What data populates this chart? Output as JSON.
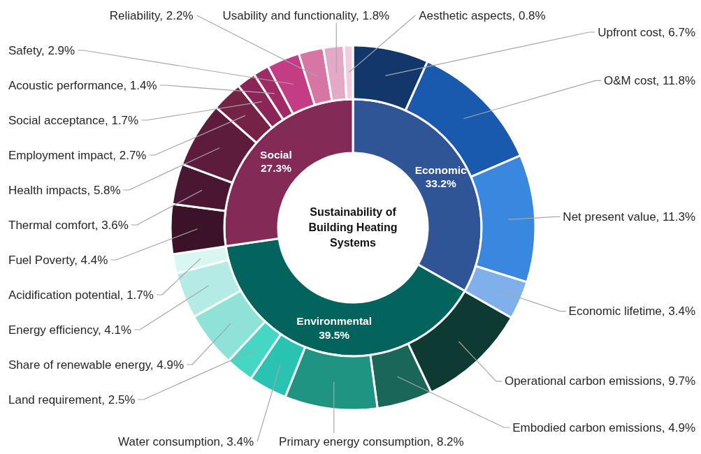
{
  "chart_data": [
    {
      "type": "donut",
      "title": "Sustainability of Building Heating Systems",
      "categories": [
        "Economic",
        "Environmental",
        "Social"
      ],
      "values": [
        33.2,
        39.5,
        27.3
      ],
      "value_labels": [
        "33.2%",
        "39.5%",
        "27.3%"
      ],
      "colors": [
        "#2f5597",
        "#03645e",
        "#832a57"
      ]
    },
    {
      "type": "donut",
      "categories": [
        "Upfront cost, 6.7%",
        "O&M cost, 11.8%",
        "Net present value, 11.3%",
        "Economic lifetime, 3.4%",
        "Operational carbon emissions, 9.7%",
        "Embodied carbon emissions, 4.9%",
        "Primary energy consumption, 8.2%",
        "Water consumption, 3.4%",
        "Land requirement, 2.5%",
        "Share of renewable energy, 4.9%",
        "Energy efficiency, 4.1%",
        "Acidification potential, 1.7%",
        "Fuel Poverty, 4.4%",
        "Thermal comfort, 3.6%",
        "Health impacts, 5.8%",
        "Employment impact, 2.7%",
        "Social acceptance, 1.7%",
        "Acoustic performance, 1.4%",
        "Safety, 2.9%",
        "Reliability, 2.2%",
        "Usability and functionality, 1.8%",
        "Aesthetic aspects, 0.8%"
      ],
      "values": [
        6.7,
        11.8,
        11.3,
        3.4,
        9.7,
        4.9,
        8.2,
        3.4,
        2.5,
        4.9,
        4.1,
        1.7,
        4.4,
        3.6,
        5.8,
        2.7,
        1.7,
        1.4,
        2.9,
        2.2,
        1.8,
        0.8
      ],
      "colors": [
        "#12386b",
        "#1a5aae",
        "#3a87e0",
        "#7fb0ec",
        "#0d3a33",
        "#1a6658",
        "#1f9482",
        "#2ac3b1",
        "#45d6c4",
        "#8ee2d8",
        "#b4ece5",
        "#d8f6f2",
        "#3b1227",
        "#4b1631",
        "#5e1c3c",
        "#742347",
        "#8b2457",
        "#a02a66",
        "#c33c84",
        "#d776a5",
        "#e5a9c8",
        "#f2cde0"
      ]
    }
  ]
}
